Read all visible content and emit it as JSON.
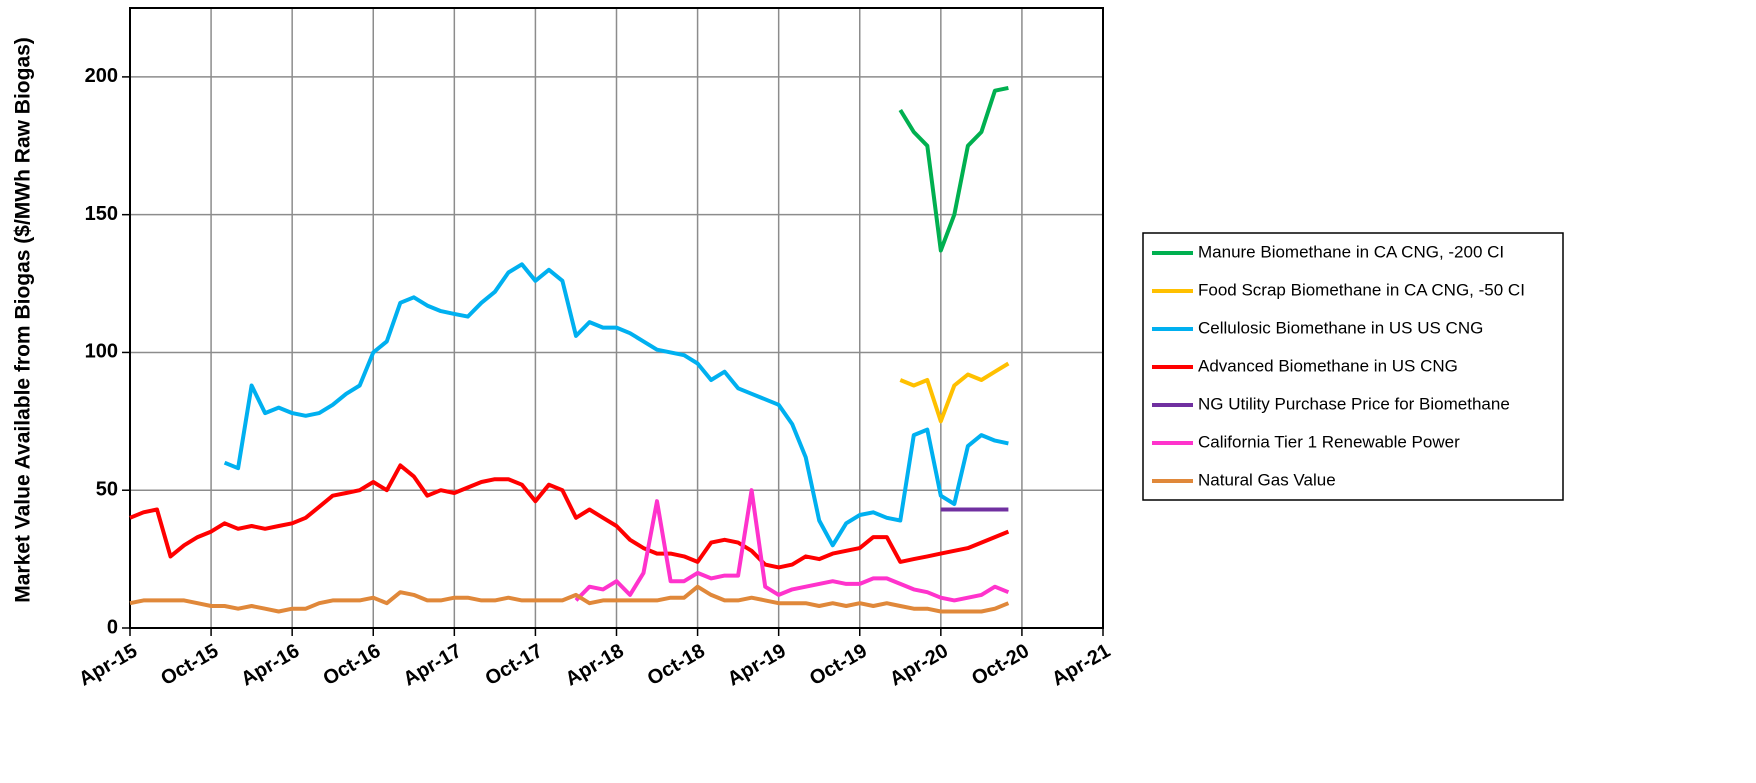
{
  "chart_data": {
    "type": "line",
    "ylabel": "Market Value Available from Biogas ($/MWh Raw Biogas)",
    "x": [
      "2015-04",
      "2015-05",
      "2015-06",
      "2015-07",
      "2015-08",
      "2015-09",
      "2015-10",
      "2015-11",
      "2015-12",
      "2016-01",
      "2016-02",
      "2016-03",
      "2016-04",
      "2016-05",
      "2016-06",
      "2016-07",
      "2016-08",
      "2016-09",
      "2016-10",
      "2016-11",
      "2016-12",
      "2017-01",
      "2017-02",
      "2017-03",
      "2017-04",
      "2017-05",
      "2017-06",
      "2017-07",
      "2017-08",
      "2017-09",
      "2017-10",
      "2017-11",
      "2017-12",
      "2018-01",
      "2018-02",
      "2018-03",
      "2018-04",
      "2018-05",
      "2018-06",
      "2018-07",
      "2018-08",
      "2018-09",
      "2018-10",
      "2018-11",
      "2018-12",
      "2019-01",
      "2019-02",
      "2019-03",
      "2019-04",
      "2019-05",
      "2019-06",
      "2019-07",
      "2019-08",
      "2019-09",
      "2019-10",
      "2019-11",
      "2019-12",
      "2020-01",
      "2020-02",
      "2020-03",
      "2020-04",
      "2020-05",
      "2020-06",
      "2020-07",
      "2020-08",
      "2020-09"
    ],
    "xlim": [
      "2015-04",
      "2021-04"
    ],
    "xticks": [
      {
        "value": "2015-04",
        "label": "Apr-15"
      },
      {
        "value": "2015-10",
        "label": "Oct-15"
      },
      {
        "value": "2016-04",
        "label": "Apr-16"
      },
      {
        "value": "2016-10",
        "label": "Oct-16"
      },
      {
        "value": "2017-04",
        "label": "Apr-17"
      },
      {
        "value": "2017-10",
        "label": "Oct-17"
      },
      {
        "value": "2018-04",
        "label": "Apr-18"
      },
      {
        "value": "2018-10",
        "label": "Oct-18"
      },
      {
        "value": "2019-04",
        "label": "Apr-19"
      },
      {
        "value": "2019-10",
        "label": "Oct-19"
      },
      {
        "value": "2020-04",
        "label": "Apr-20"
      },
      {
        "value": "2020-10",
        "label": "Oct-20"
      },
      {
        "value": "2021-04",
        "label": "Apr-21"
      }
    ],
    "ylim": [
      0,
      225
    ],
    "yticks": [
      0,
      50,
      100,
      150,
      200
    ],
    "grid": true,
    "legend": "right",
    "series": [
      {
        "name": "Manure Biomethane in CA CNG, -200 CI",
        "color": "#00b050",
        "values": [
          null,
          null,
          null,
          null,
          null,
          null,
          null,
          null,
          null,
          null,
          null,
          null,
          null,
          null,
          null,
          null,
          null,
          null,
          null,
          null,
          null,
          null,
          null,
          null,
          null,
          null,
          null,
          null,
          null,
          null,
          null,
          null,
          null,
          null,
          null,
          null,
          null,
          null,
          null,
          null,
          null,
          null,
          null,
          null,
          null,
          null,
          null,
          null,
          null,
          null,
          null,
          null,
          null,
          null,
          null,
          null,
          null,
          188,
          180,
          175,
          137,
          150,
          175,
          180,
          195,
          196
        ]
      },
      {
        "name": "Food Scrap Biomethane in CA CNG, -50 CI",
        "color": "#ffc000",
        "values": [
          null,
          null,
          null,
          null,
          null,
          null,
          null,
          null,
          null,
          null,
          null,
          null,
          null,
          null,
          null,
          null,
          null,
          null,
          null,
          null,
          null,
          null,
          null,
          null,
          null,
          null,
          null,
          null,
          null,
          null,
          null,
          null,
          null,
          null,
          null,
          null,
          null,
          null,
          null,
          null,
          null,
          null,
          null,
          null,
          null,
          null,
          null,
          null,
          null,
          null,
          null,
          null,
          null,
          null,
          null,
          null,
          null,
          90,
          88,
          90,
          75,
          88,
          92,
          90,
          93,
          96
        ]
      },
      {
        "name": "Cellulosic Biomethane in US US CNG",
        "color": "#00b0f0",
        "values": [
          null,
          null,
          null,
          null,
          null,
          null,
          null,
          60,
          58,
          88,
          78,
          80,
          78,
          77,
          78,
          81,
          85,
          88,
          100,
          104,
          118,
          120,
          117,
          115,
          114,
          113,
          118,
          122,
          129,
          132,
          126,
          130,
          126,
          106,
          111,
          109,
          109,
          107,
          104,
          101,
          100,
          99,
          96,
          90,
          93,
          87,
          85,
          83,
          81,
          74,
          62,
          39,
          30,
          38,
          41,
          42,
          40,
          39,
          70,
          72,
          48,
          45,
          66,
          70,
          68,
          67
        ]
      },
      {
        "name": "Advanced Biomethane in US CNG",
        "color": "#ff0000",
        "values": [
          40,
          42,
          43,
          26,
          30,
          33,
          35,
          38,
          36,
          37,
          36,
          37,
          38,
          40,
          44,
          48,
          49,
          50,
          53,
          50,
          59,
          55,
          48,
          50,
          49,
          51,
          53,
          54,
          54,
          52,
          46,
          52,
          50,
          40,
          43,
          40,
          37,
          32,
          29,
          27,
          27,
          26,
          24,
          31,
          32,
          31,
          28,
          23,
          22,
          23,
          26,
          25,
          27,
          28,
          29,
          33,
          33,
          24,
          25,
          26,
          27,
          28,
          29,
          31,
          33,
          35
        ]
      },
      {
        "name": "NG Utility Purchase Price for Biomethane",
        "color": "#7030a0",
        "values": [
          null,
          null,
          null,
          null,
          null,
          null,
          null,
          null,
          null,
          null,
          null,
          null,
          null,
          null,
          null,
          null,
          null,
          null,
          null,
          null,
          null,
          null,
          null,
          null,
          null,
          null,
          null,
          null,
          null,
          null,
          null,
          null,
          null,
          null,
          null,
          null,
          null,
          null,
          null,
          null,
          null,
          null,
          null,
          null,
          null,
          null,
          null,
          null,
          null,
          null,
          null,
          null,
          null,
          null,
          null,
          null,
          null,
          null,
          null,
          null,
          43,
          43,
          43,
          43,
          43,
          43
        ]
      },
      {
        "name": "California Tier 1 Renewable Power",
        "color": "#ff33cc",
        "values": [
          null,
          null,
          null,
          null,
          null,
          null,
          null,
          null,
          null,
          null,
          null,
          null,
          null,
          null,
          null,
          null,
          null,
          null,
          null,
          null,
          null,
          null,
          null,
          null,
          null,
          null,
          null,
          null,
          null,
          null,
          null,
          null,
          null,
          10,
          15,
          14,
          17,
          12,
          20,
          46,
          17,
          17,
          20,
          18,
          19,
          19,
          50,
          15,
          12,
          14,
          15,
          16,
          17,
          16,
          16,
          18,
          18,
          16,
          14,
          13,
          11,
          10,
          11,
          12,
          15,
          13
        ]
      },
      {
        "name": "Natural Gas Value",
        "color": "#e0883a",
        "values": [
          9,
          10,
          10,
          10,
          10,
          9,
          8,
          8,
          7,
          8,
          7,
          6,
          7,
          7,
          9,
          10,
          10,
          10,
          11,
          9,
          13,
          12,
          10,
          10,
          11,
          11,
          10,
          10,
          11,
          10,
          10,
          10,
          10,
          12,
          9,
          10,
          10,
          10,
          10,
          10,
          11,
          11,
          15,
          12,
          10,
          10,
          11,
          10,
          9,
          9,
          9,
          8,
          9,
          8,
          9,
          8,
          9,
          8,
          7,
          7,
          6,
          6,
          6,
          6,
          7,
          9
        ]
      }
    ]
  }
}
